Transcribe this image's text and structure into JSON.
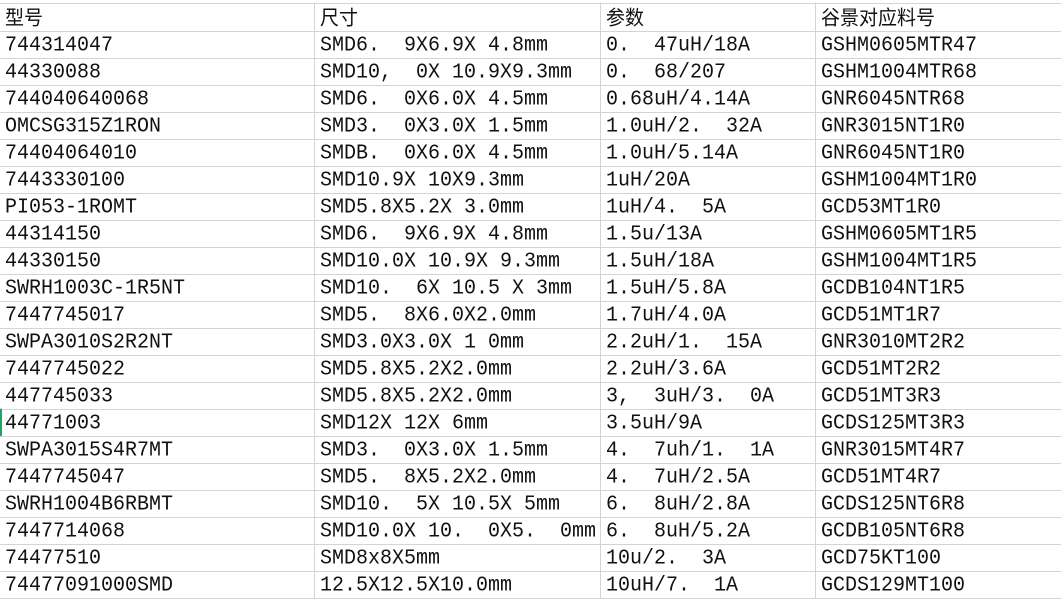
{
  "columns": [
    "型号",
    "尺寸",
    "参数",
    "谷景对应料号"
  ],
  "rows": [
    [
      "744314047",
      "SMD6.  9X6.9X 4.8mm",
      "0.  47uH/18A",
      "GSHM0605MTR47"
    ],
    [
      "44330088",
      "SMD10,  0X 10.9X9.3mm",
      "0.  68/207",
      "GSHM1004MTR68"
    ],
    [
      "744040640068",
      "SMD6.  0X6.0X 4.5mm",
      "0.68uH/4.14A",
      "GNR6045NTR68"
    ],
    [
      "OMCSG315Z1RON",
      "SMD3.  0X3.0X 1.5mm",
      "1.0uH/2.  32A",
      "GNR3015NT1R0"
    ],
    [
      "74404064010",
      "SMDB.  0X6.0X 4.5mm",
      "1.0uH/5.14A",
      "GNR6045NT1R0"
    ],
    [
      "7443330100",
      "SMD10.9X 10X9.3mm",
      "1uH/20A",
      "GSHM1004MT1R0"
    ],
    [
      "PI053-1ROMT",
      "SMD5.8X5.2X 3.0mm",
      "1uH/4.  5A",
      "GCD53MT1R0"
    ],
    [
      "44314150",
      "SMD6.  9X6.9X 4.8mm",
      "1.5u/13A",
      "GSHM0605MT1R5"
    ],
    [
      "44330150",
      "SMD10.0X 10.9X 9.3mm",
      "1.5uH/18A",
      "GSHM1004MT1R5"
    ],
    [
      "SWRH1003C-1R5NT",
      "SMD10.  6X 10.5 X 3mm",
      "1.5uH/5.8A",
      "GCDB104NT1R5"
    ],
    [
      "7447745017",
      "SMD5.  8X6.0X2.0mm",
      "1.7uH/4.0A",
      "GCD51MT1R7"
    ],
    [
      "SWPA3010S2R2NT",
      "SMD3.0X3.0X 1 0mm",
      "2.2uH/1.  15A",
      "GNR3010MT2R2"
    ],
    [
      "7447745022",
      "SMD5.8X5.2X2.0mm",
      "2.2uH/3.6A",
      "GCD51MT2R2"
    ],
    [
      "447745033",
      "SMD5.8X5.2X2.0mm",
      "3,  3uH/3.  0A",
      "GCD51MT3R3"
    ],
    [
      "44771003",
      "SMD12X 12X 6mm",
      "3.5uH/9A",
      "GCDS125MT3R3"
    ],
    [
      "SWPA3015S4R7MT",
      "SMD3.  0X3.0X 1.5mm",
      "4.  7uh/1.  1A",
      "GNR3015MT4R7"
    ],
    [
      "7447745047",
      "SMD5.  8X5.2X2.0mm",
      "4.  7uH/2.5A",
      "GCD51MT4R7"
    ],
    [
      "SWRH1004B6RBMT",
      "SMD10.  5X 10.5X 5mm",
      "6.  8uH/2.8A",
      "GCDS125NT6R8"
    ],
    [
      "7447714068",
      "SMD10.0X 10.  0X5.  0mm",
      "6.  8uH/5.2A",
      "GCDB105NT6R8"
    ],
    [
      "74477510",
      "SMD8x8X5mm",
      "10u/2.  3A",
      "GCD75KT100"
    ],
    [
      "74477091000SMD",
      "12.5X12.5X10.0mm",
      "10uH/7.  1A",
      "GCDS129MT100"
    ]
  ],
  "active_row": 14,
  "colors": {
    "grid": "#d4d4d4",
    "active_indicator": "#21a366"
  }
}
